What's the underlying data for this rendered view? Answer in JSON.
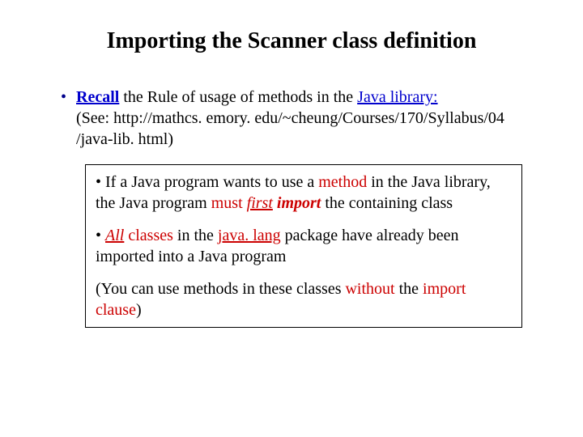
{
  "colors": {
    "bullet_blue": "#00008b",
    "link_blue": "#0000cd",
    "emphasis_red": "#cc0000",
    "text_black": "#000000",
    "background": "#ffffff"
  },
  "typography": {
    "font_family": "Times New Roman",
    "title_fontsize": 28,
    "body_fontsize": 20
  },
  "title": "Importing the Scanner class definition",
  "bullet": {
    "t1": "Recall",
    "t2": " the Rule of usage of methods in the ",
    "t3": "Java library:",
    "t4": "(See: http://mathcs. emory. edu/~cheung/Courses/170/Syllabus/04 /java-lib. html)"
  },
  "box": {
    "p1": {
      "a": "• If a Java program wants to use a ",
      "b": "method",
      "c": " in the Java library, the Java program ",
      "d": "must ",
      "e": "first",
      "f": " import",
      "g": " the containing class"
    },
    "p2": {
      "a": "• ",
      "b": "All",
      "c": " classes",
      "d": " in the ",
      "e": "java. lang",
      "f": " package have already been imported into a Java program"
    },
    "p3": {
      "a": "(You can use methods in these classes ",
      "b": "without",
      "c": " the ",
      "d": "import clause",
      "e": ")"
    }
  }
}
